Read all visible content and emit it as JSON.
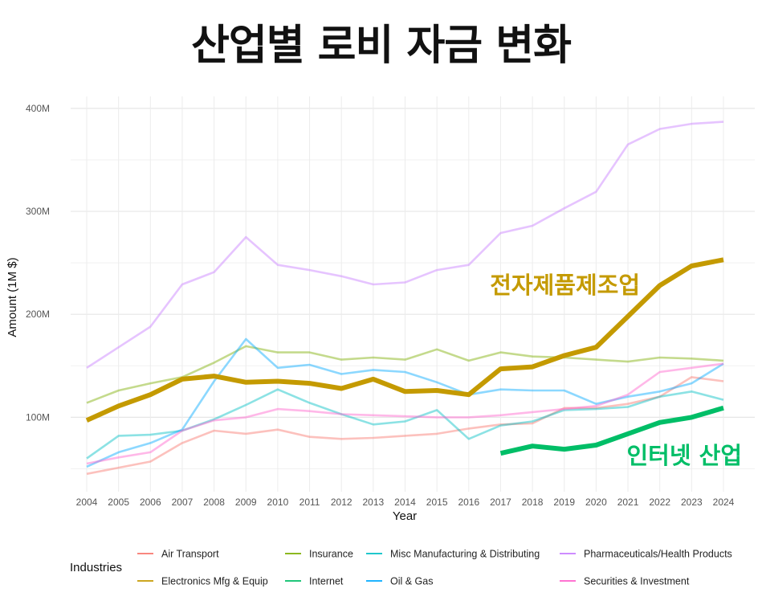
{
  "title": "산업별 로비 자금 변화",
  "chart_data": {
    "type": "line",
    "title": "산업별 로비 자금 변화",
    "xlabel": "Year",
    "ylabel": "Amount (1M $)",
    "ylim": [
      35,
      405
    ],
    "yticks": [
      100,
      200,
      300,
      400
    ],
    "ytick_labels": [
      "100M",
      "200M",
      "300M",
      "400M"
    ],
    "grid": true,
    "legend_title": "Industries",
    "legend_position": "bottom",
    "x": [
      2004,
      2005,
      2006,
      2007,
      2008,
      2009,
      2010,
      2011,
      2012,
      2013,
      2014,
      2015,
      2016,
      2017,
      2018,
      2019,
      2020,
      2021,
      2022,
      2023,
      2024
    ],
    "series": [
      {
        "name": "Air Transport",
        "color": "#F8766D",
        "highlight": false,
        "values": [
          45,
          51,
          57,
          75,
          87,
          84,
          88,
          81,
          79,
          80,
          82,
          84,
          89,
          93,
          94,
          109,
          109,
          113,
          120,
          139,
          135
        ]
      },
      {
        "name": "Electronics Mfg & Equip",
        "color": "#C49A00",
        "highlight": true,
        "values": [
          97,
          111,
          122,
          137,
          140,
          134,
          135,
          133,
          128,
          137,
          125,
          126,
          122,
          147,
          149,
          160,
          168,
          198,
          228,
          247,
          253
        ]
      },
      {
        "name": "Insurance",
        "color": "#7CAE00",
        "highlight": false,
        "values": [
          114,
          126,
          133,
          139,
          153,
          169,
          163,
          163,
          156,
          158,
          156,
          166,
          155,
          163,
          159,
          158,
          156,
          154,
          158,
          157,
          155
        ]
      },
      {
        "name": "Internet",
        "color": "#00BE67",
        "highlight": true,
        "values": [
          null,
          null,
          null,
          null,
          null,
          null,
          null,
          null,
          null,
          null,
          null,
          null,
          null,
          65,
          72,
          69,
          73,
          84,
          95,
          100,
          109
        ]
      },
      {
        "name": "Misc Manufacturing & Distributing",
        "color": "#00BFC4",
        "highlight": false,
        "values": [
          60,
          82,
          83,
          87,
          98,
          112,
          127,
          114,
          103,
          93,
          96,
          107,
          79,
          92,
          96,
          107,
          108,
          110,
          120,
          125,
          117
        ]
      },
      {
        "name": "Oil & Gas",
        "color": "#00A9FF",
        "highlight": false,
        "values": [
          52,
          66,
          75,
          88,
          135,
          176,
          148,
          151,
          142,
          146,
          144,
          134,
          122,
          127,
          126,
          126,
          113,
          120,
          125,
          133,
          152
        ]
      },
      {
        "name": "Pharmaceuticals/Health Products",
        "color": "#C77CFF",
        "highlight": false,
        "values": [
          148,
          168,
          188,
          229,
          241,
          275,
          248,
          243,
          237,
          229,
          231,
          243,
          248,
          279,
          286,
          303,
          319,
          365,
          380,
          385,
          387
        ]
      },
      {
        "name": "Securities & Investment",
        "color": "#FF61CC",
        "highlight": false,
        "values": [
          55,
          61,
          66,
          87,
          97,
          100,
          108,
          106,
          103,
          102,
          101,
          100,
          100,
          102,
          105,
          108,
          111,
          122,
          144,
          148,
          152
        ]
      }
    ],
    "annotations": [
      {
        "text": "전자제품제조업",
        "color": "#C49A00",
        "near_series": "Electronics Mfg & Equip"
      },
      {
        "text": "인터넷 산업",
        "color": "#00BE67",
        "near_series": "Internet"
      }
    ]
  }
}
